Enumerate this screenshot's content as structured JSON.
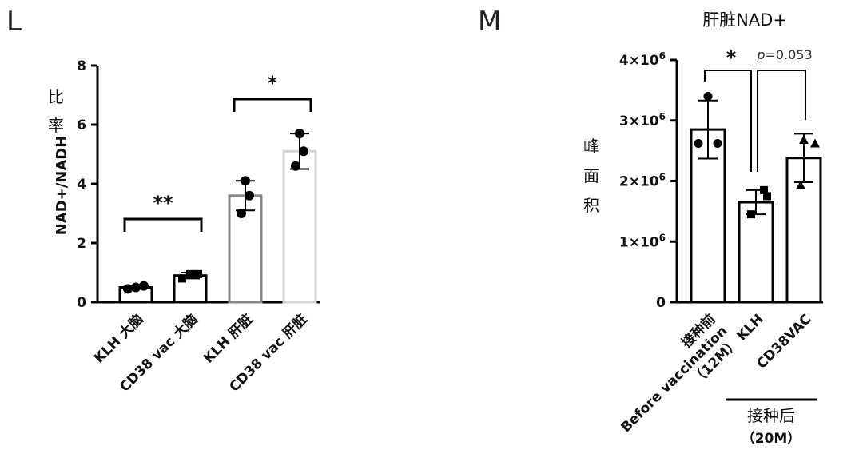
{
  "chart_data": [
    {
      "panel_label": "L",
      "type": "bar",
      "title": "",
      "ylabel": "NAD+/NADH",
      "ylabel_side": "比率",
      "ylim": [
        0,
        8
      ],
      "yticks": [
        "0",
        "2",
        "4",
        "6",
        "8"
      ],
      "categories": [
        "KLH 大脑",
        "CD38 vac 大脑",
        "KLH 肝脏",
        "CD38 vac 肝脏"
      ],
      "values": [
        0.5,
        0.9,
        3.6,
        5.1
      ],
      "error": [
        0.05,
        0.1,
        0.5,
        0.6
      ],
      "points": [
        [
          0.45,
          0.5,
          0.55
        ],
        [
          0.8,
          0.95,
          0.95
        ],
        [
          3.0,
          3.6,
          4.1
        ],
        [
          4.6,
          5.1,
          5.7
        ]
      ],
      "bar_colors": [
        "#000000",
        "#000000",
        "#888888",
        "#d4d4d4"
      ],
      "significance": [
        {
          "between": [
            0,
            1
          ],
          "label": "**"
        },
        {
          "between": [
            2,
            3
          ],
          "label": "*"
        }
      ]
    },
    {
      "panel_label": "M",
      "type": "bar",
      "title": "肝脏NAD+",
      "ylabel": "峰面积",
      "ylim": [
        0,
        4000000
      ],
      "yticks": [
        {
          "base": "0",
          "exp": ""
        },
        {
          "base": "1×10",
          "exp": "6"
        },
        {
          "base": "2×10",
          "exp": "6"
        },
        {
          "base": "3×10",
          "exp": "6"
        },
        {
          "base": "4×10",
          "exp": "6"
        }
      ],
      "categories": [
        {
          "lines": [
            "接种前",
            "Before vaccination",
            "（12M）"
          ]
        },
        {
          "lines": [
            "KLH"
          ]
        },
        {
          "lines": [
            "CD38VAC"
          ]
        }
      ],
      "values": [
        2850000,
        1650000,
        2380000
      ],
      "error": [
        480000,
        200000,
        400000
      ],
      "points": [
        [
          3400000,
          2620000,
          2620000
        ],
        [
          1850000,
          1450000,
          1750000
        ],
        [
          2680000,
          2620000,
          1930000
        ]
      ],
      "markers": [
        "circle",
        "square",
        "triangle"
      ],
      "group_label": {
        "text": "接种后",
        "sub": "（20M）",
        "covers": [
          1,
          2
        ]
      },
      "significance": [
        {
          "between": [
            0,
            1
          ],
          "label": "*"
        },
        {
          "between": [
            1,
            2
          ],
          "label": "p=0.053",
          "italic_prefix": "p"
        }
      ]
    }
  ]
}
